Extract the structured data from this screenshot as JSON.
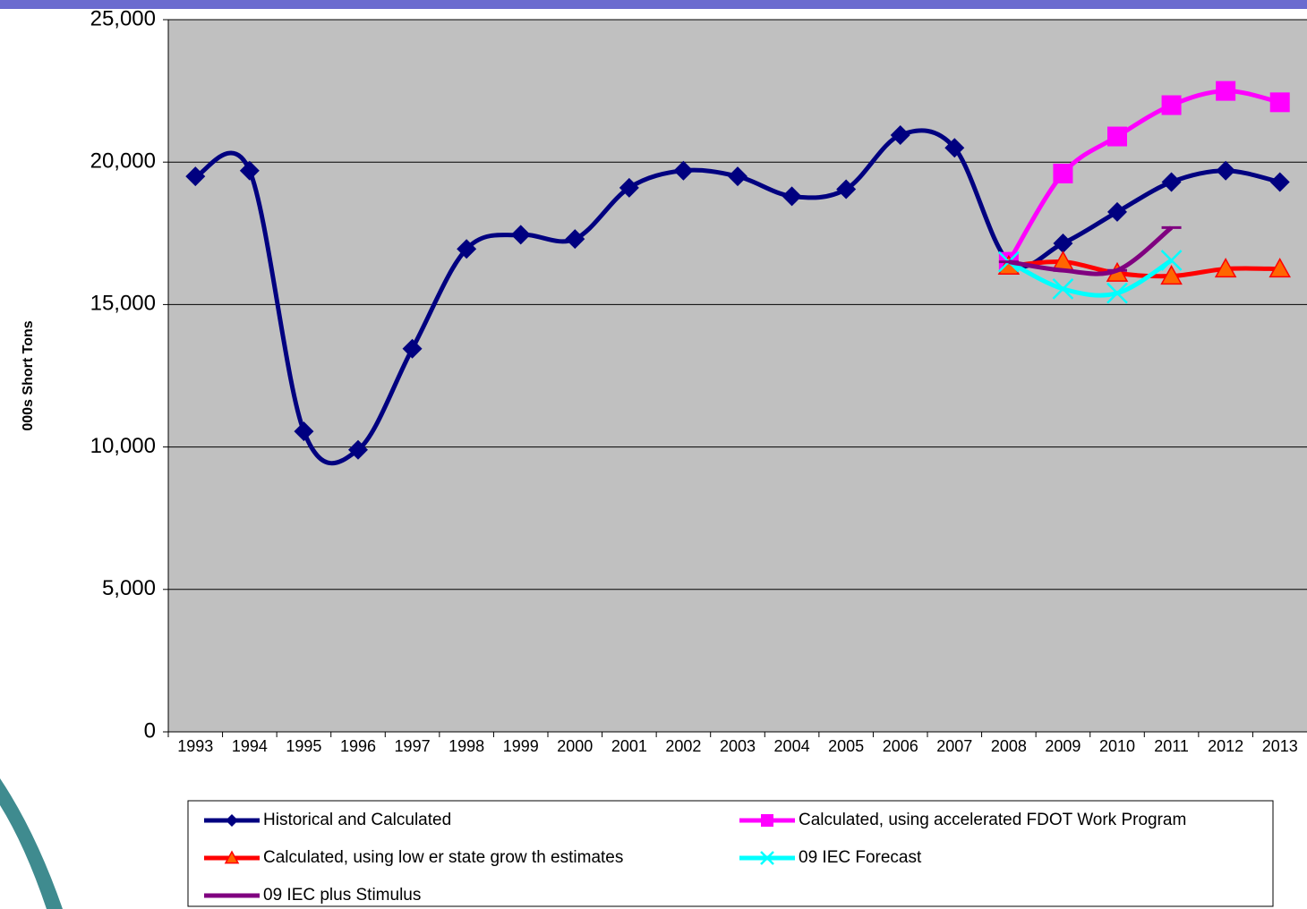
{
  "chart_data": {
    "type": "line",
    "y_axis_label": "000s Short Tons",
    "categories": [
      "1993",
      "1994",
      "1995",
      "1996",
      "1997",
      "1998",
      "1999",
      "2000",
      "2001",
      "2002",
      "2003",
      "2004",
      "2005",
      "2006",
      "2007",
      "2008",
      "2009",
      "2010",
      "2011",
      "2012",
      "2013"
    ],
    "series": [
      {
        "name": "Historical and Calculated",
        "color": "#000080",
        "marker": "diamond",
        "values": [
          19500,
          19700,
          10550,
          9900,
          13450,
          16950,
          17450,
          17300,
          19100,
          19700,
          19500,
          18800,
          19050,
          20950,
          20500,
          16500,
          17150,
          18250,
          19300,
          19700,
          19300
        ]
      },
      {
        "name": "Calculated, using accelerated FDOT Work Program",
        "color": "#ff00ff",
        "marker": "square",
        "values": [
          null,
          null,
          null,
          null,
          null,
          null,
          null,
          null,
          null,
          null,
          null,
          null,
          null,
          null,
          null,
          16500,
          19600,
          20900,
          22000,
          22500,
          22100
        ]
      },
      {
        "name": "Calculated, using low er state grow th estimates",
        "color": "#ff0000",
        "marker": "triangle",
        "values": [
          null,
          null,
          null,
          null,
          null,
          null,
          null,
          null,
          null,
          null,
          null,
          null,
          null,
          null,
          null,
          16350,
          16500,
          16100,
          16000,
          16250,
          16250
        ]
      },
      {
        "name": "09 IEC Forecast",
        "color": "#00ffff",
        "marker": "x",
        "values": [
          null,
          null,
          null,
          null,
          null,
          null,
          null,
          null,
          null,
          null,
          null,
          null,
          null,
          null,
          null,
          16500,
          15550,
          15400,
          16550,
          null,
          null
        ]
      },
      {
        "name": "09 IEC plus Stimulus",
        "color": "#800080",
        "marker": "dash",
        "values": [
          null,
          null,
          null,
          null,
          null,
          null,
          null,
          null,
          null,
          null,
          null,
          null,
          null,
          null,
          null,
          16500,
          16200,
          16200,
          17700,
          null,
          null
        ]
      }
    ],
    "ylim": [
      0,
      25000
    ],
    "yticks": [
      0,
      {
        "value": 5000,
        "label": "5,000"
      },
      {
        "value": 10000,
        "label": "10,000"
      },
      {
        "value": 15000,
        "label": "15,000"
      },
      {
        "value": 20000,
        "label": "20,000"
      },
      {
        "value": 25000,
        "label": "25,000"
      }
    ],
    "grid": true
  }
}
